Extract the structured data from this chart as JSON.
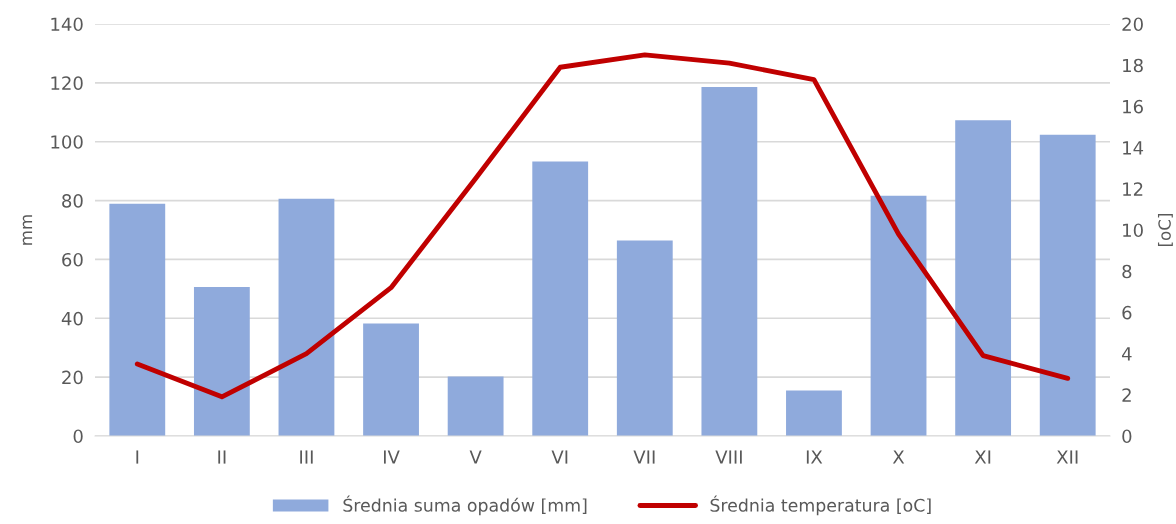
{
  "chart_data": {
    "type": "bar",
    "categories": [
      "I",
      "II",
      "III",
      "IV",
      "V",
      "VI",
      "VII",
      "VIII",
      "IX",
      "X",
      "XI",
      "XII"
    ],
    "series": [
      {
        "name": "Średnia suma opadów [mm]",
        "color": "#8faadc",
        "values": [
          78.9,
          50.6,
          80.6,
          38.2,
          20.2,
          93.3,
          66.4,
          118.6,
          15.5,
          81.6,
          107.3,
          102.4
        ]
      },
      {
        "name": "Średnia temperatura [oC]",
        "type": "line",
        "axis": "y2",
        "color": "#c00000",
        "values": [
          3.5,
          1.9,
          4.0,
          7.2,
          12.5,
          17.9,
          18.5,
          18.1,
          17.3,
          9.8,
          3.9,
          2.8
        ]
      }
    ],
    "ylabel": "mm",
    "y2label": "[oC]",
    "ylim": [
      0,
      140
    ],
    "yticks": [
      0,
      20,
      40,
      60,
      80,
      100,
      120,
      140
    ],
    "y2lim": [
      0,
      20
    ],
    "y2ticks": [
      0,
      2,
      4,
      6,
      8,
      10,
      12,
      14,
      16,
      18,
      20
    ],
    "grid": "y",
    "legend": "bottom",
    "marker": "none",
    "line_style": "solid"
  }
}
